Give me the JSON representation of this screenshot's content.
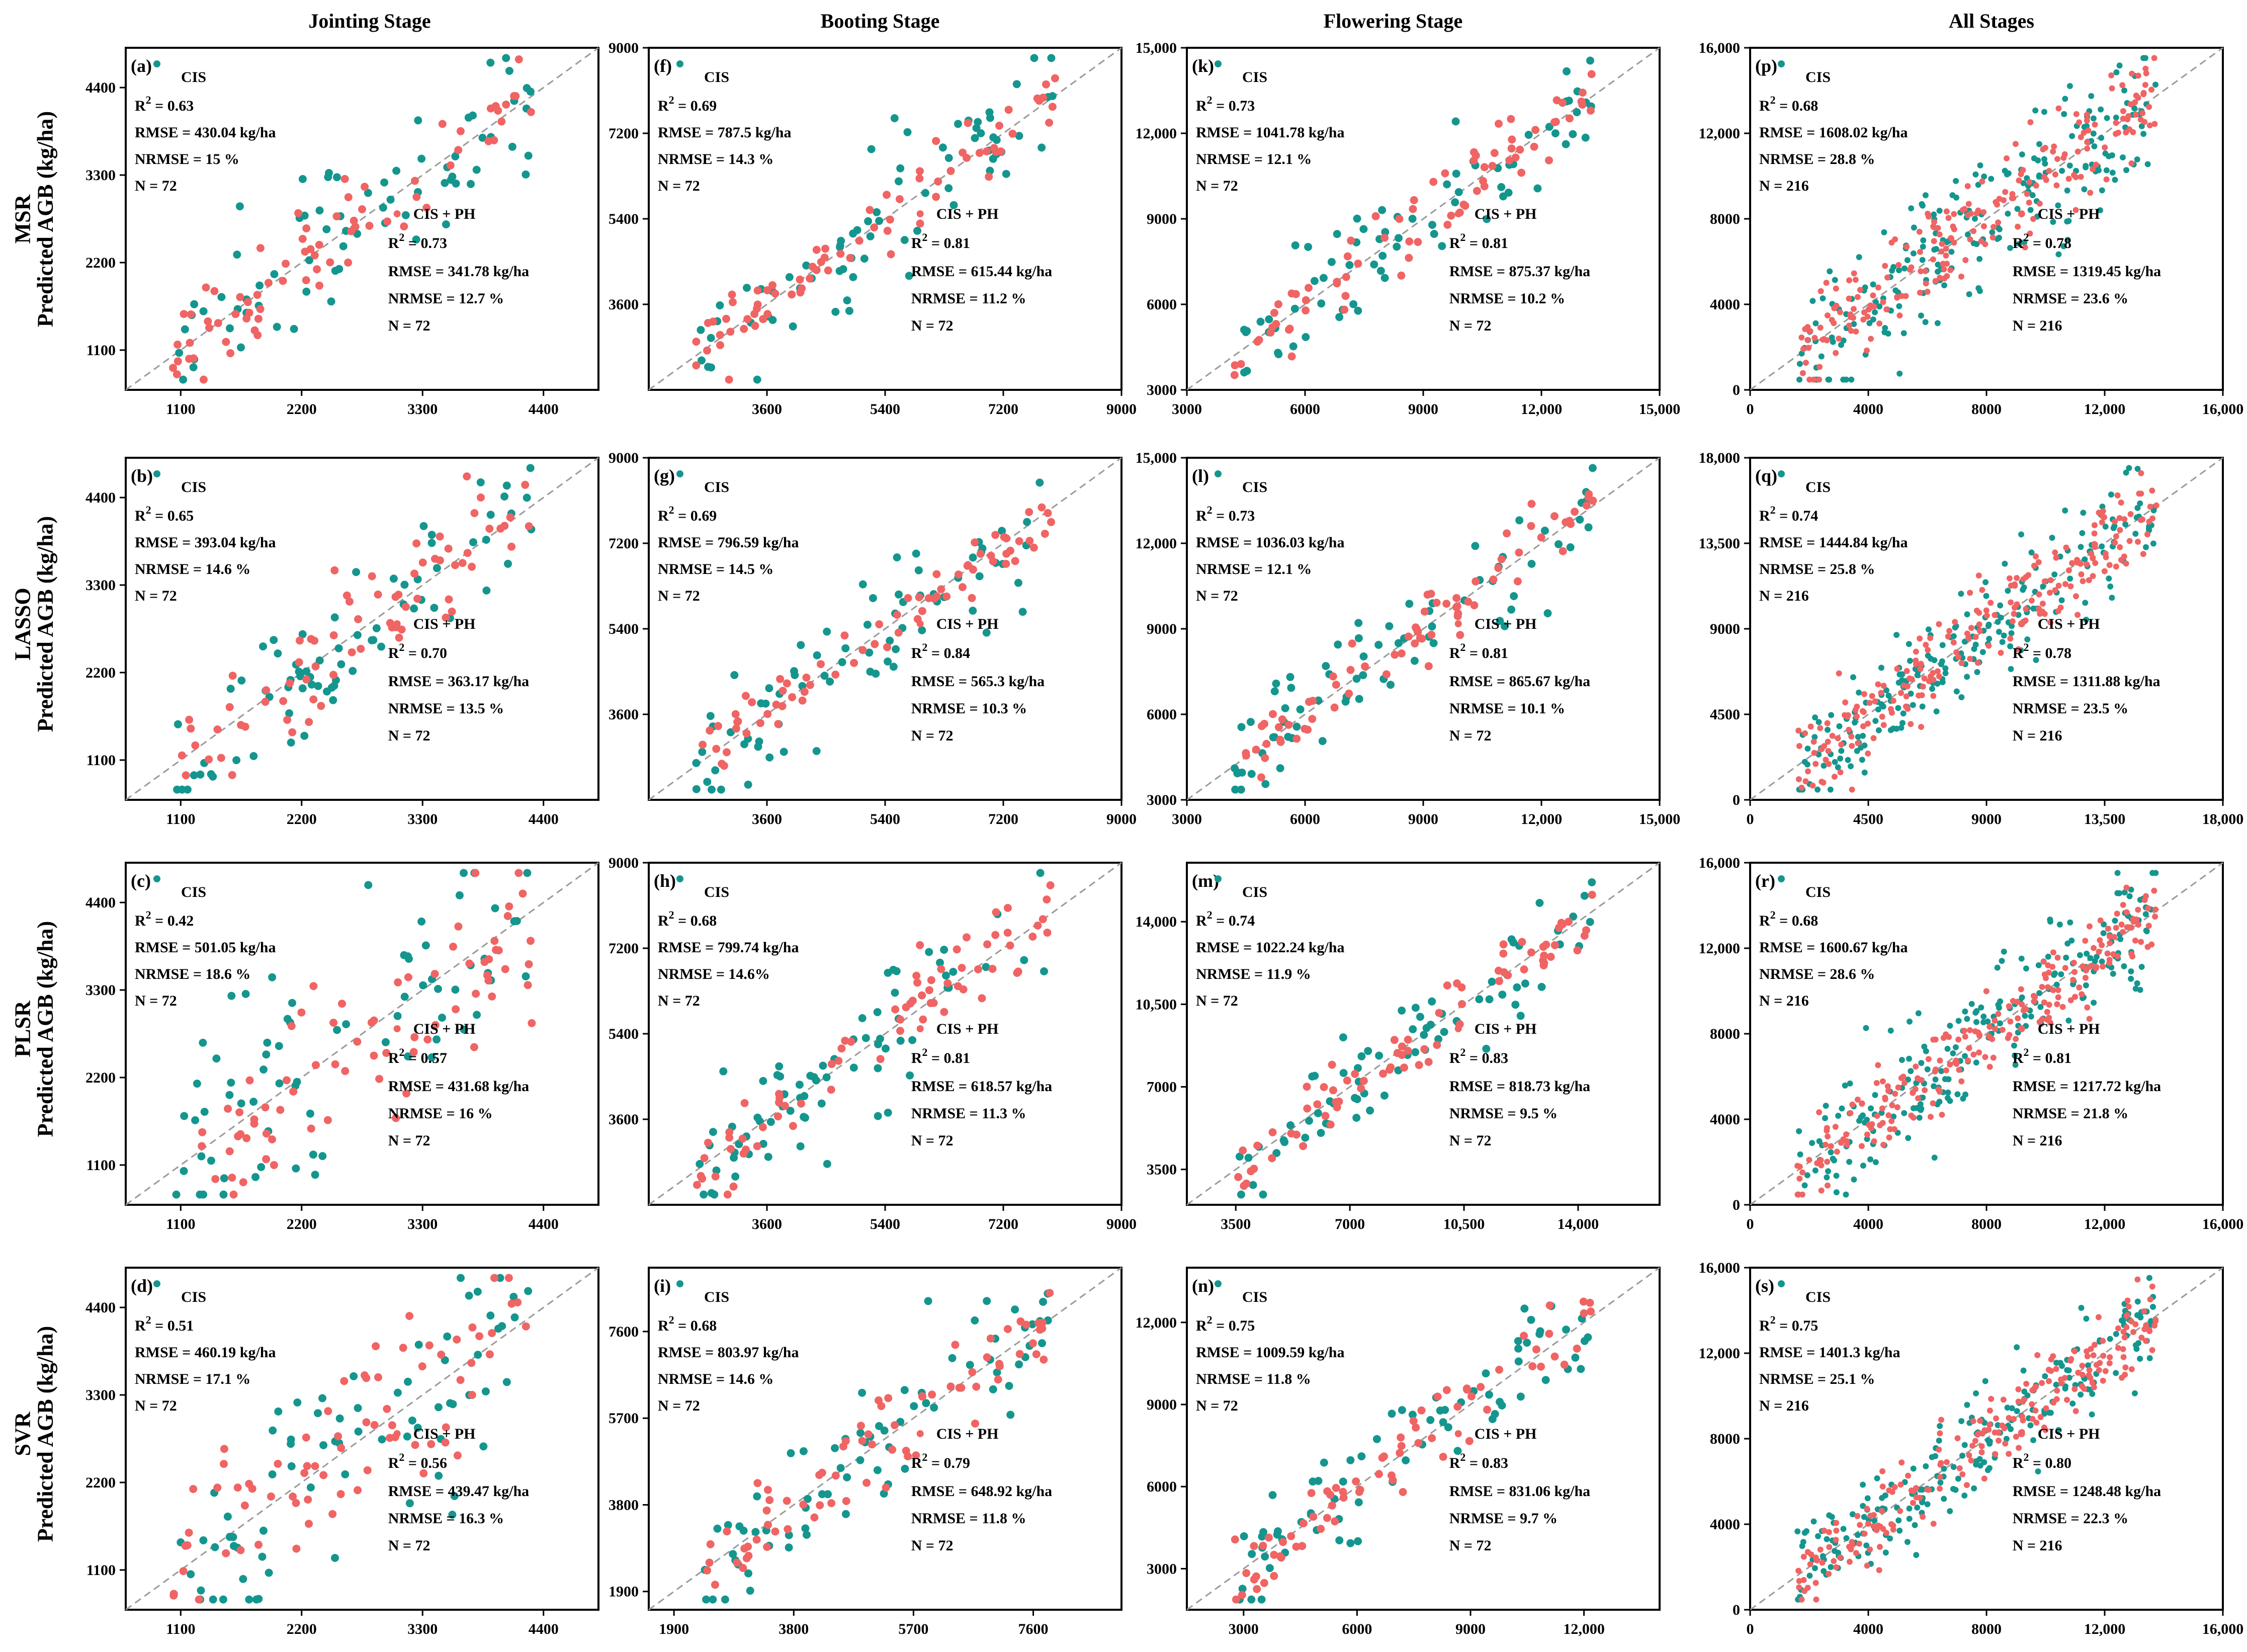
{
  "col_titles": [
    "Jointing Stage",
    "Booting Stage",
    "Flowering Stage",
    "All Stages"
  ],
  "row_models": [
    "MSR",
    "LASSO",
    "PLSR",
    "SVR"
  ],
  "ylabel": "Predicted AGB (kg/ha)",
  "colors": {
    "cis": "#14968f",
    "cis_ph": "#f06464",
    "diag": "#9a9a9a",
    "frame": "#000000"
  },
  "legend": {
    "cis": "CIS",
    "cis_ph": "CIS + PH"
  },
  "chart_data": [
    {
      "type": "scatter",
      "label": "(a)",
      "stage": "Jointing Stage",
      "model": "MSR",
      "lim": [
        600,
        4900
      ],
      "ticks": [
        1100,
        2200,
        3300,
        4400
      ],
      "tick_labels": [
        "1100",
        "2200",
        "3300",
        "4400"
      ],
      "cis": {
        "r2": "R",
        "r2v": " = 0.63",
        "rmse": "RMSE = 430.04 kg/ha",
        "nrmse": "NRMSE = 15 %",
        "n": "N = 72",
        "corr": 0.8,
        "npts": 72
      },
      "ph": {
        "r2": "R",
        "r2v": " = 0.73",
        "rmse": "RMSE = 341.78 kg/ha",
        "nrmse": "NRMSE = 12.7 %",
        "n": "N = 72",
        "corr": 0.86,
        "npts": 72
      }
    },
    {
      "type": "scatter",
      "label": "(f)",
      "stage": "Booting Stage",
      "model": "MSR",
      "lim": [
        1800,
        9000
      ],
      "ticks": [
        3600,
        5400,
        7200,
        9000
      ],
      "tick_labels": [
        "3600",
        "5400",
        "7200",
        "9000"
      ],
      "cis": {
        "r2": "R",
        "r2v": " = 0.69",
        "rmse": "RMSE = 787.5 kg/ha",
        "nrmse": "NRMSE = 14.3 %",
        "n": "N = 72",
        "corr": 0.83,
        "npts": 72
      },
      "ph": {
        "r2": "R",
        "r2v": " = 0.81",
        "rmse": "RMSE = 615.44 kg/ha",
        "nrmse": "NRMSE = 11.2 %",
        "n": "N = 72",
        "corr": 0.9,
        "npts": 72
      }
    },
    {
      "type": "scatter",
      "label": "(k)",
      "stage": "Flowering Stage",
      "model": "MSR",
      "lim": [
        3000,
        15000
      ],
      "ticks": [
        3000,
        6000,
        9000,
        12000,
        15000
      ],
      "tick_labels": [
        "3000",
        "6000",
        "9000",
        "12,000",
        "15,000"
      ],
      "cis": {
        "r2": "R",
        "r2v": " = 0.73",
        "rmse": "RMSE = 1041.78 kg/ha",
        "nrmse": "NRMSE = 12.1 %",
        "n": "N = 72",
        "corr": 0.85,
        "npts": 72
      },
      "ph": {
        "r2": "R",
        "r2v": " = 0.81",
        "rmse": "RMSE = 875.37 kg/ha",
        "nrmse": "NRMSE = 10.2 %",
        "n": "N = 72",
        "corr": 0.9,
        "npts": 72
      }
    },
    {
      "type": "scatter",
      "label": "(p)",
      "stage": "All Stages",
      "model": "MSR",
      "lim": [
        0,
        16000
      ],
      "ticks": [
        0,
        4000,
        8000,
        12000,
        16000
      ],
      "tick_labels": [
        "0",
        "4000",
        "8000",
        "12,000",
        "16,000"
      ],
      "cis": {
        "r2": "R",
        "r2v": " = 0.68",
        "rmse": "RMSE = 1608.02 kg/ha",
        "nrmse": "NRMSE = 28.8 %",
        "n": "N = 216",
        "corr": 0.82,
        "npts": 216
      },
      "ph": {
        "r2": "R",
        "r2v": " = 0.78",
        "rmse": "RMSE = 1319.45 kg/ha",
        "nrmse": "NRMSE = 23.6 %",
        "n": "N = 216",
        "corr": 0.88,
        "npts": 216
      }
    },
    {
      "type": "scatter",
      "label": "(b)",
      "stage": "Jointing Stage",
      "model": "LASSO",
      "lim": [
        600,
        4900
      ],
      "ticks": [
        1100,
        2200,
        3300,
        4400
      ],
      "tick_labels": [
        "1100",
        "2200",
        "3300",
        "4400"
      ],
      "cis": {
        "r2": "R",
        "r2v": " = 0.65",
        "rmse": "RMSE = 393.04 kg/ha",
        "nrmse": "NRMSE = 14.6 %",
        "n": "N = 72",
        "corr": 0.81,
        "npts": 72
      },
      "ph": {
        "r2": "R",
        "r2v": " = 0.70",
        "rmse": "RMSE = 363.17 kg/ha",
        "nrmse": "NRMSE = 13.5 %",
        "n": "N = 72",
        "corr": 0.84,
        "npts": 72
      }
    },
    {
      "type": "scatter",
      "label": "(g)",
      "stage": "Booting Stage",
      "model": "LASSO",
      "lim": [
        1800,
        9000
      ],
      "ticks": [
        3600,
        5400,
        7200,
        9000
      ],
      "tick_labels": [
        "3600",
        "5400",
        "7200",
        "9000"
      ],
      "cis": {
        "r2": "R",
        "r2v": " = 0.69",
        "rmse": "RMSE = 796.59 kg/ha",
        "nrmse": "NRMSE = 14.5 %",
        "n": "N = 72",
        "corr": 0.83,
        "npts": 72
      },
      "ph": {
        "r2": "R",
        "r2v": " = 0.84",
        "rmse": "RMSE = 565.3 kg/ha",
        "nrmse": "NRMSE = 10.3 %",
        "n": "N = 72",
        "corr": 0.92,
        "npts": 72
      }
    },
    {
      "type": "scatter",
      "label": "(l)",
      "stage": "Flowering Stage",
      "model": "LASSO",
      "lim": [
        3000,
        15000
      ],
      "ticks": [
        3000,
        6000,
        9000,
        12000,
        15000
      ],
      "tick_labels": [
        "3000",
        "6000",
        "9000",
        "12,000",
        "15,000"
      ],
      "cis": {
        "r2": "R",
        "r2v": " = 0.73",
        "rmse": "RMSE = 1036.03 kg/ha",
        "nrmse": "NRMSE = 12.1 %",
        "n": "N = 72",
        "corr": 0.85,
        "npts": 72
      },
      "ph": {
        "r2": "R",
        "r2v": " = 0.81",
        "rmse": "RMSE = 865.67 kg/ha",
        "nrmse": "NRMSE = 10.1 %",
        "n": "N = 72",
        "corr": 0.9,
        "npts": 72
      }
    },
    {
      "type": "scatter",
      "label": "(q)",
      "stage": "All Stages",
      "model": "LASSO",
      "lim": [
        0,
        18000
      ],
      "ticks": [
        0,
        4500,
        9000,
        13500,
        18000
      ],
      "tick_labels": [
        "0",
        "4500",
        "9000",
        "13,500",
        "18,000"
      ],
      "cis": {
        "r2": "R",
        "r2v": " = 0.74",
        "rmse": "RMSE = 1444.84 kg/ha",
        "nrmse": "NRMSE = 25.8 %",
        "n": "N = 216",
        "corr": 0.86,
        "npts": 216
      },
      "ph": {
        "r2": "R",
        "r2v": " = 0.78",
        "rmse": "RMSE = 1311.88 kg/ha",
        "nrmse": "NRMSE = 23.5 %",
        "n": "N = 216",
        "corr": 0.88,
        "npts": 216
      }
    },
    {
      "type": "scatter",
      "label": "(c)",
      "stage": "Jointing Stage",
      "model": "PLSR",
      "lim": [
        600,
        4900
      ],
      "ticks": [
        1100,
        2200,
        3300,
        4400
      ],
      "tick_labels": [
        "1100",
        "2200",
        "3300",
        "4400"
      ],
      "cis": {
        "r2": "R",
        "r2v": " = 0.42",
        "rmse": "RMSE = 501.05 kg/ha",
        "nrmse": "NRMSE = 18.6 %",
        "n": "N = 72",
        "corr": 0.65,
        "npts": 72
      },
      "ph": {
        "r2": "R",
        "r2v": " = 0.57",
        "rmse": "RMSE = 431.68 kg/ha",
        "nrmse": "NRMSE = 16 %",
        "n": "N = 72",
        "corr": 0.75,
        "npts": 72
      }
    },
    {
      "type": "scatter",
      "label": "(h)",
      "stage": "Booting Stage",
      "model": "PLSR",
      "lim": [
        1800,
        9000
      ],
      "ticks": [
        3600,
        5400,
        7200,
        9000
      ],
      "tick_labels": [
        "3600",
        "5400",
        "7200",
        "9000"
      ],
      "cis": {
        "r2": "R",
        "r2v": " = 0.68",
        "rmse": "RMSE = 799.74 kg/ha",
        "nrmse": "NRMSE = 14.6%",
        "n": "N = 72",
        "corr": 0.82,
        "npts": 72
      },
      "ph": {
        "r2": "R",
        "r2v": " = 0.81",
        "rmse": "RMSE = 618.57 kg/ha",
        "nrmse": "NRMSE = 11.3 %",
        "n": "N = 72",
        "corr": 0.9,
        "npts": 72
      }
    },
    {
      "type": "scatter",
      "label": "(m)",
      "stage": "Flowering Stage",
      "model": "PLSR",
      "lim": [
        2000,
        16500
      ],
      "ticks": [
        3500,
        7000,
        10500,
        14000
      ],
      "tick_labels": [
        "3500",
        "7000",
        "10,500",
        "14,000"
      ],
      "cis": {
        "r2": "R",
        "r2v": " = 0.74",
        "rmse": "RMSE = 1022.24 kg/ha",
        "nrmse": "NRMSE = 11.9 %",
        "n": "N = 72",
        "corr": 0.86,
        "npts": 72
      },
      "ph": {
        "r2": "R",
        "r2v": " = 0.83",
        "rmse": "RMSE = 818.73 kg/ha",
        "nrmse": "NRMSE = 9.5 %",
        "n": "N = 72",
        "corr": 0.91,
        "npts": 72
      }
    },
    {
      "type": "scatter",
      "label": "(r)",
      "stage": "All Stages",
      "model": "PLSR",
      "lim": [
        0,
        16000
      ],
      "ticks": [
        0,
        4000,
        8000,
        12000,
        16000
      ],
      "tick_labels": [
        "0",
        "4000",
        "8000",
        "12,000",
        "16,000"
      ],
      "cis": {
        "r2": "R",
        "r2v": " = 0.68",
        "rmse": "RMSE = 1600.67 kg/ha",
        "nrmse": "NRMSE = 28.6 %",
        "n": "N = 216",
        "corr": 0.82,
        "npts": 216
      },
      "ph": {
        "r2": "R",
        "r2v": " = 0.81",
        "rmse": "RMSE = 1217.72 kg/ha",
        "nrmse": "NRMSE = 21.8 %",
        "n": "N = 216",
        "corr": 0.9,
        "npts": 216
      }
    },
    {
      "type": "scatter",
      "label": "(d)",
      "stage": "Jointing Stage",
      "model": "SVR",
      "lim": [
        600,
        4900
      ],
      "ticks": [
        1100,
        2200,
        3300,
        4400
      ],
      "tick_labels": [
        "1100",
        "2200",
        "3300",
        "4400"
      ],
      "cis": {
        "r2": "R",
        "r2v": " = 0.51",
        "rmse": "RMSE = 460.19 kg/ha",
        "nrmse": "NRMSE = 17.1 %",
        "n": "N = 72",
        "corr": 0.71,
        "npts": 72
      },
      "ph": {
        "r2": "R",
        "r2v": " = 0.56",
        "rmse": "RMSE = 439.47 kg/ha",
        "nrmse": "NRMSE = 16.3 %",
        "n": "N = 72",
        "corr": 0.75,
        "npts": 72
      }
    },
    {
      "type": "scatter",
      "label": "(i)",
      "stage": "Booting Stage",
      "model": "SVR",
      "lim": [
        1500,
        9000
      ],
      "ticks": [
        1900,
        3800,
        5700,
        7600
      ],
      "tick_labels": [
        "1900",
        "3800",
        "5700",
        "7600"
      ],
      "cis": {
        "r2": "R",
        "r2v": " = 0.68",
        "rmse": "RMSE = 803.97 kg/ha",
        "nrmse": "NRMSE = 14.6 %",
        "n": "N = 72",
        "corr": 0.82,
        "npts": 72
      },
      "ph": {
        "r2": "R",
        "r2v": " = 0.79",
        "rmse": "RMSE = 648.92 kg/ha",
        "nrmse": "NRMSE = 11.8 %",
        "n": "N = 72",
        "corr": 0.89,
        "npts": 72
      }
    },
    {
      "type": "scatter",
      "label": "(n)",
      "stage": "Flowering Stage",
      "model": "SVR",
      "lim": [
        1500,
        14000
      ],
      "ticks": [
        3000,
        6000,
        9000,
        12000
      ],
      "tick_labels": [
        "3000",
        "6000",
        "9000",
        "12,000"
      ],
      "cis": {
        "r2": "R",
        "r2v": " = 0.75",
        "rmse": "RMSE = 1009.59 kg/ha",
        "nrmse": "NRMSE = 11.8 %",
        "n": "N = 72",
        "corr": 0.86,
        "npts": 72
      },
      "ph": {
        "r2": "R",
        "r2v": " = 0.83",
        "rmse": "RMSE = 831.06 kg/ha",
        "nrmse": "NRMSE = 9.7 %",
        "n": "N = 72",
        "corr": 0.91,
        "npts": 72
      }
    },
    {
      "type": "scatter",
      "label": "(s)",
      "stage": "All Stages",
      "model": "SVR",
      "lim": [
        0,
        16000
      ],
      "ticks": [
        0,
        4000,
        8000,
        12000,
        16000
      ],
      "tick_labels": [
        "0",
        "4000",
        "8000",
        "12,000",
        "16,000"
      ],
      "cis": {
        "r2": "R",
        "r2v": " = 0.75",
        "rmse": "RMSE = 1401.3 kg/ha",
        "nrmse": "NRMSE = 25.1 %",
        "n": "N = 216",
        "corr": 0.87,
        "npts": 216
      },
      "ph": {
        "r2": "R",
        "r2v": " = 0.80",
        "rmse": "RMSE = 1248.48 kg/ha",
        "nrmse": "NRMSE = 22.3 %",
        "n": "N = 216",
        "corr": 0.89,
        "npts": 216
      }
    }
  ]
}
